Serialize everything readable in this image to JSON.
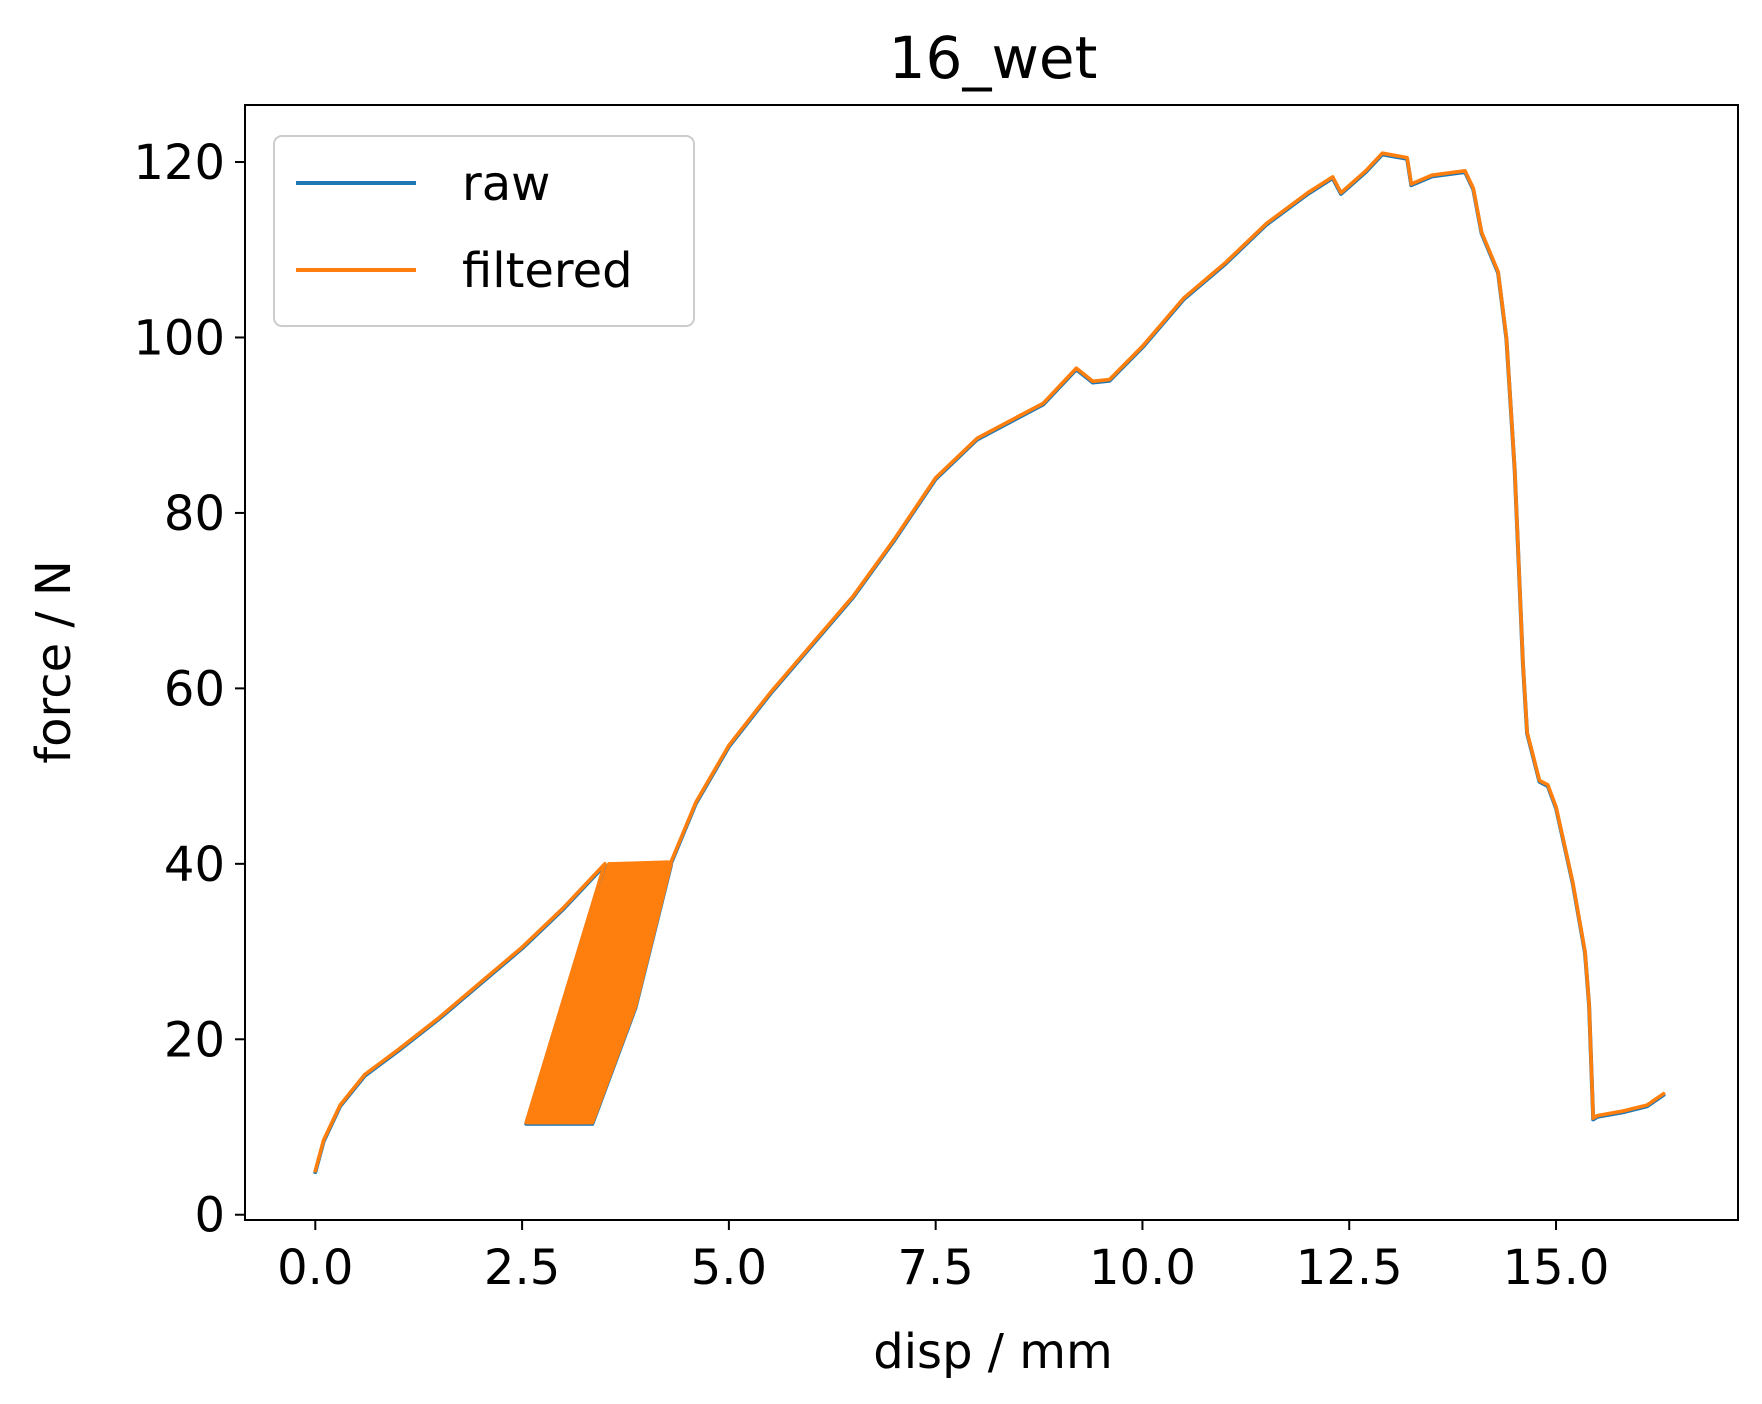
{
  "chart_data": {
    "type": "line",
    "title": "16_wet",
    "xlabel": "disp / mm",
    "ylabel": "force / N",
    "xlim": [
      -0.85,
      17.2
    ],
    "ylim": [
      -0.6,
      126.5
    ],
    "xticks": [
      0.0,
      2.5,
      5.0,
      7.5,
      10.0,
      12.5,
      15.0
    ],
    "xtick_labels": [
      "0.0",
      "2.5",
      "5.0",
      "7.5",
      "10.0",
      "12.5",
      "15.0"
    ],
    "yticks": [
      0,
      20,
      40,
      60,
      80,
      100,
      120
    ],
    "ytick_labels": [
      "0",
      "20",
      "40",
      "60",
      "80",
      "100",
      "120"
    ],
    "grid": false,
    "legend": {
      "position": "upper left",
      "entries": [
        "raw",
        "filtered"
      ]
    },
    "cycles": {
      "description_free": true,
      "count": 45,
      "x_low_start": 2.55,
      "x_low_end": 3.35,
      "x_high_start": 3.55,
      "x_high_end": 4.3,
      "y_low": 10.5,
      "y_high": 40
    },
    "series": [
      {
        "name": "raw",
        "color": "#1f77b4",
        "x": [
          0.0,
          0.1,
          0.3,
          0.6,
          1.0,
          1.5,
          2.0,
          2.5,
          3.0,
          3.5,
          3.6,
          4.3,
          4.6,
          5.0,
          5.5,
          6.0,
          6.5,
          7.0,
          7.5,
          8.0,
          8.5,
          8.8,
          9.2,
          9.4,
          9.6,
          10.0,
          10.5,
          11.0,
          11.5,
          12.0,
          12.3,
          12.4,
          12.7,
          12.9,
          13.2,
          13.25,
          13.5,
          13.9,
          14.0,
          14.1,
          14.3,
          14.4,
          14.5,
          14.6,
          14.65,
          14.8,
          14.9,
          15.0,
          15.2,
          15.35,
          15.4,
          15.45,
          15.5,
          15.8,
          16.1,
          16.3
        ],
        "y": [
          5.0,
          8.5,
          12.5,
          16.0,
          18.8,
          22.5,
          26.5,
          30.5,
          35.0,
          40.0,
          40.0,
          40.2,
          47.0,
          53.5,
          59.5,
          65.0,
          70.5,
          77.0,
          84.0,
          88.5,
          91.0,
          92.5,
          96.5,
          95.0,
          95.2,
          99.0,
          104.5,
          108.5,
          113.0,
          116.5,
          118.3,
          116.5,
          119.0,
          121.0,
          120.5,
          117.5,
          118.5,
          119.0,
          117.0,
          112.0,
          107.5,
          100.0,
          85.0,
          63.0,
          55.0,
          49.5,
          49.0,
          46.5,
          38.0,
          30.0,
          24.0,
          11.0,
          11.3,
          11.8,
          12.5,
          13.8
        ]
      },
      {
        "name": "filtered",
        "color": "#ff7f0e",
        "x": [
          0.0,
          0.1,
          0.3,
          0.6,
          1.0,
          1.5,
          2.0,
          2.5,
          3.0,
          3.5,
          3.6,
          4.3,
          4.6,
          5.0,
          5.5,
          6.0,
          6.5,
          7.0,
          7.5,
          8.0,
          8.5,
          8.8,
          9.2,
          9.4,
          9.6,
          10.0,
          10.5,
          11.0,
          11.5,
          12.0,
          12.3,
          12.4,
          12.7,
          12.9,
          13.2,
          13.25,
          13.5,
          13.9,
          14.0,
          14.1,
          14.3,
          14.4,
          14.5,
          14.6,
          14.65,
          14.8,
          14.9,
          15.0,
          15.2,
          15.35,
          15.4,
          15.45,
          15.5,
          15.8,
          16.1,
          16.3
        ],
        "y": [
          5.0,
          8.5,
          12.5,
          16.0,
          18.8,
          22.5,
          26.5,
          30.5,
          35.0,
          40.0,
          40.0,
          40.2,
          47.0,
          53.5,
          59.5,
          65.0,
          70.5,
          77.0,
          84.0,
          88.5,
          91.0,
          92.5,
          96.5,
          95.0,
          95.2,
          99.0,
          104.5,
          108.5,
          113.0,
          116.5,
          118.3,
          116.5,
          119.0,
          121.0,
          120.5,
          117.5,
          118.5,
          119.0,
          117.0,
          112.0,
          107.5,
          100.0,
          85.0,
          63.0,
          55.0,
          49.5,
          49.0,
          46.5,
          38.0,
          30.0,
          24.0,
          11.0,
          11.3,
          11.8,
          12.5,
          13.8
        ]
      }
    ]
  }
}
